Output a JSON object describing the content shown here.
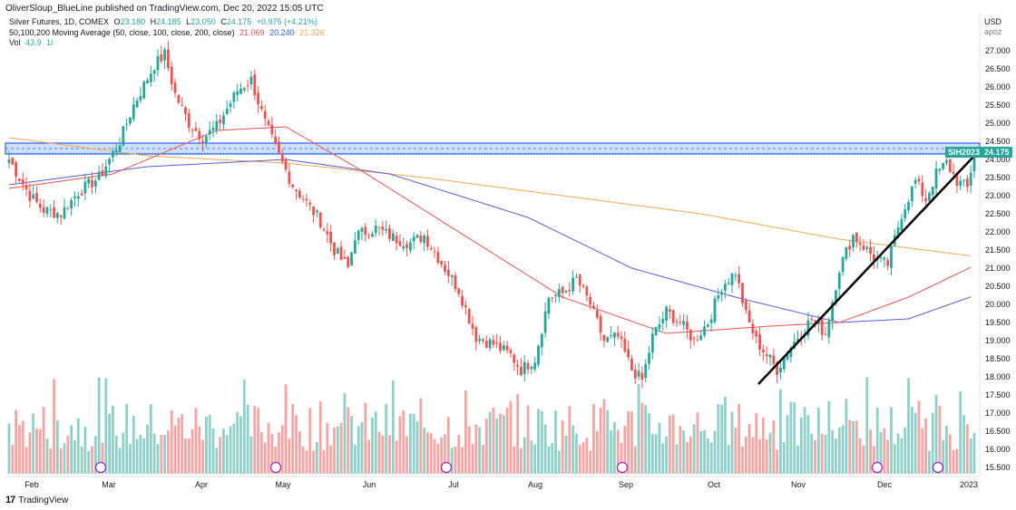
{
  "header": {
    "published": "OliverSloup_BlueLine published on TradingView.com, Dec 20, 2022 15:05 UTC",
    "symbol_line": {
      "name": "Silver Futures, 1D, COMEX",
      "o_label": "O",
      "o": "23.180",
      "h_label": "H",
      "h": "24.185",
      "l_label": "L",
      "l": "23.050",
      "c_label": "C",
      "c": "24.175",
      "change": "+0.975 (+4.21%)"
    },
    "ma_line": {
      "name": "50,100,200 Moving Average (50, close, 100, close, 200, close)",
      "ma50": "21.069",
      "ma100": "20.240",
      "ma200": "21.326"
    },
    "vol_line": {
      "name": "Vol",
      "value": "43.9",
      "suffix": "1l"
    }
  },
  "axis": {
    "currency": "USD",
    "unit": "apoz",
    "price_labels": [
      "27.000",
      "26.500",
      "26.000",
      "25.500",
      "25.000",
      "24.500",
      "24.000",
      "23.500",
      "23.000",
      "22.500",
      "22.000",
      "21.500",
      "21.000",
      "20.500",
      "20.000",
      "19.500",
      "19.000",
      "18.500",
      "18.000",
      "17.500",
      "17.000",
      "16.500",
      "16.000",
      "15.500"
    ],
    "months": [
      "Feb",
      "Mar",
      "Apr",
      "May",
      "Jun",
      "Jul",
      "Aug",
      "Sep",
      "Oct",
      "Nov",
      "Dec",
      "2023"
    ]
  },
  "badges": {
    "symbol": "SIH2023",
    "price": "24.175"
  },
  "footer": {
    "brand": "TradingView"
  },
  "colors": {
    "up": "#26a69a",
    "down": "#ef5350",
    "vol_up": "#8fd1c8",
    "vol_down": "#f5a6a4",
    "ma50": "#ef5350",
    "ma100": "#5b5bdc",
    "ma200": "#f7a854",
    "zone_fill": "#bcd3f7",
    "zone_line": "#2962ff"
  },
  "chart_data": {
    "type": "candlestick",
    "symbol": "Silver Futures, 1D, COMEX",
    "ylim": [
      15.3,
      27.8
    ],
    "x": [
      "Feb",
      "Mar",
      "Apr",
      "May",
      "Jun",
      "Jul",
      "Aug",
      "Sep",
      "Oct",
      "Nov",
      "Dec",
      "2023"
    ],
    "resistance_zone": [
      24.15,
      24.45
    ],
    "trendline": {
      "from": [
        "Oct",
        17.8
      ],
      "to": [
        "Dec",
        24.1
      ]
    },
    "close_waypoints": [
      [
        0,
        24.0
      ],
      [
        6,
        23.0
      ],
      [
        10,
        22.6
      ],
      [
        15,
        22.5
      ],
      [
        20,
        23.1
      ],
      [
        26,
        23.5
      ],
      [
        32,
        24.5
      ],
      [
        36,
        25.5
      ],
      [
        42,
        26.6
      ],
      [
        45,
        26.9
      ],
      [
        48,
        25.8
      ],
      [
        52,
        25.0
      ],
      [
        56,
        24.6
      ],
      [
        60,
        24.9
      ],
      [
        66,
        25.9
      ],
      [
        70,
        26.2
      ],
      [
        74,
        25.0
      ],
      [
        78,
        24.1
      ],
      [
        82,
        23.3
      ],
      [
        86,
        22.8
      ],
      [
        90,
        22.3
      ],
      [
        94,
        21.5
      ],
      [
        98,
        21.0
      ],
      [
        100,
        21.9
      ],
      [
        106,
        22.1
      ],
      [
        112,
        21.8
      ],
      [
        116,
        21.7
      ],
      [
        120,
        21.9
      ],
      [
        124,
        21.3
      ],
      [
        130,
        20.4
      ],
      [
        135,
        19.1
      ],
      [
        140,
        18.9
      ],
      [
        145,
        18.6
      ],
      [
        148,
        18.2
      ],
      [
        152,
        18.5
      ],
      [
        156,
        20.2
      ],
      [
        160,
        20.3
      ],
      [
        164,
        20.7
      ],
      [
        168,
        20.0
      ],
      [
        172,
        19.0
      ],
      [
        176,
        19.1
      ],
      [
        180,
        18.2
      ],
      [
        183,
        17.9
      ],
      [
        186,
        19.1
      ],
      [
        190,
        19.8
      ],
      [
        194,
        19.5
      ],
      [
        198,
        19.0
      ],
      [
        202,
        19.5
      ],
      [
        206,
        20.5
      ],
      [
        210,
        20.9
      ],
      [
        213,
        19.7
      ],
      [
        216,
        19.0
      ],
      [
        219,
        18.6
      ],
      [
        222,
        18.2
      ],
      [
        225,
        18.7
      ],
      [
        228,
        19.1
      ],
      [
        232,
        19.6
      ],
      [
        236,
        19.2
      ],
      [
        240,
        21.0
      ],
      [
        244,
        21.9
      ],
      [
        248,
        21.5
      ],
      [
        251,
        21.2
      ],
      [
        254,
        21.1
      ],
      [
        258,
        22.5
      ],
      [
        262,
        23.4
      ],
      [
        265,
        22.9
      ],
      [
        268,
        23.6
      ],
      [
        271,
        23.9
      ],
      [
        274,
        23.4
      ],
      [
        277,
        23.2
      ],
      [
        279,
        24.175
      ]
    ],
    "ma50_waypoints": [
      [
        0,
        23.2
      ],
      [
        30,
        23.6
      ],
      [
        60,
        24.8
      ],
      [
        80,
        24.9
      ],
      [
        100,
        23.8
      ],
      [
        130,
        22.0
      ],
      [
        160,
        20.2
      ],
      [
        190,
        19.2
      ],
      [
        220,
        19.4
      ],
      [
        240,
        19.5
      ],
      [
        260,
        20.2
      ],
      [
        279,
        21.069
      ]
    ],
    "ma100_waypoints": [
      [
        0,
        23.3
      ],
      [
        40,
        23.8
      ],
      [
        80,
        24.0
      ],
      [
        110,
        23.6
      ],
      [
        150,
        22.4
      ],
      [
        180,
        21.0
      ],
      [
        210,
        20.2
      ],
      [
        240,
        19.5
      ],
      [
        260,
        19.6
      ],
      [
        279,
        20.24
      ]
    ],
    "ma200_waypoints": [
      [
        0,
        24.6
      ],
      [
        40,
        24.1
      ],
      [
        80,
        23.9
      ],
      [
        120,
        23.5
      ],
      [
        160,
        23.0
      ],
      [
        200,
        22.5
      ],
      [
        240,
        21.8
      ],
      [
        279,
        21.326
      ]
    ],
    "volume": {
      "last": 43.9
    }
  }
}
